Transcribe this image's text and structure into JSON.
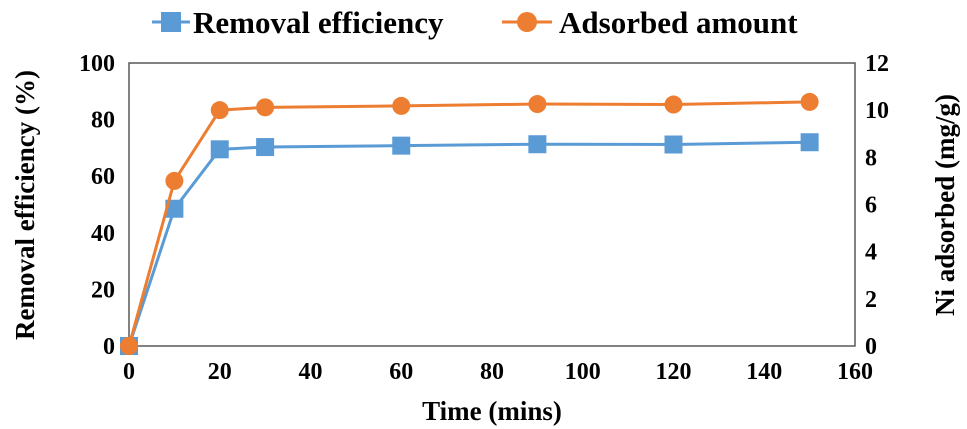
{
  "chart_data": {
    "type": "line",
    "x": [
      0,
      10,
      20,
      30,
      60,
      90,
      120,
      150
    ],
    "xlabel": "Time (mins)",
    "ylabel": "Removal efficiency (%)",
    "y2label": "Ni adsorbed (mg/g)",
    "xlim": [
      0,
      160
    ],
    "ylim": [
      0,
      100
    ],
    "y2lim": [
      0,
      12
    ],
    "x_ticks": [
      "0",
      "20",
      "40",
      "60",
      "80",
      "100",
      "120",
      "140",
      "160"
    ],
    "y_ticks": [
      "0",
      "20",
      "40",
      "60",
      "80",
      "100"
    ],
    "y2_ticks": [
      "0",
      "2",
      "4",
      "6",
      "8",
      "10",
      "12"
    ],
    "legend_position": "top",
    "series": [
      {
        "name": "Removal efficiency",
        "axis": "left",
        "marker": "square",
        "color": "#5B9BD5",
        "values": [
          0,
          48.5,
          69.5,
          70.3,
          70.8,
          71.3,
          71.2,
          72.0
        ]
      },
      {
        "name": "Adsorbed amount",
        "axis": "right",
        "marker": "circle",
        "color": "#ED7D31",
        "values": [
          0,
          7.0,
          10.0,
          10.12,
          10.18,
          10.26,
          10.24,
          10.35
        ]
      }
    ]
  }
}
